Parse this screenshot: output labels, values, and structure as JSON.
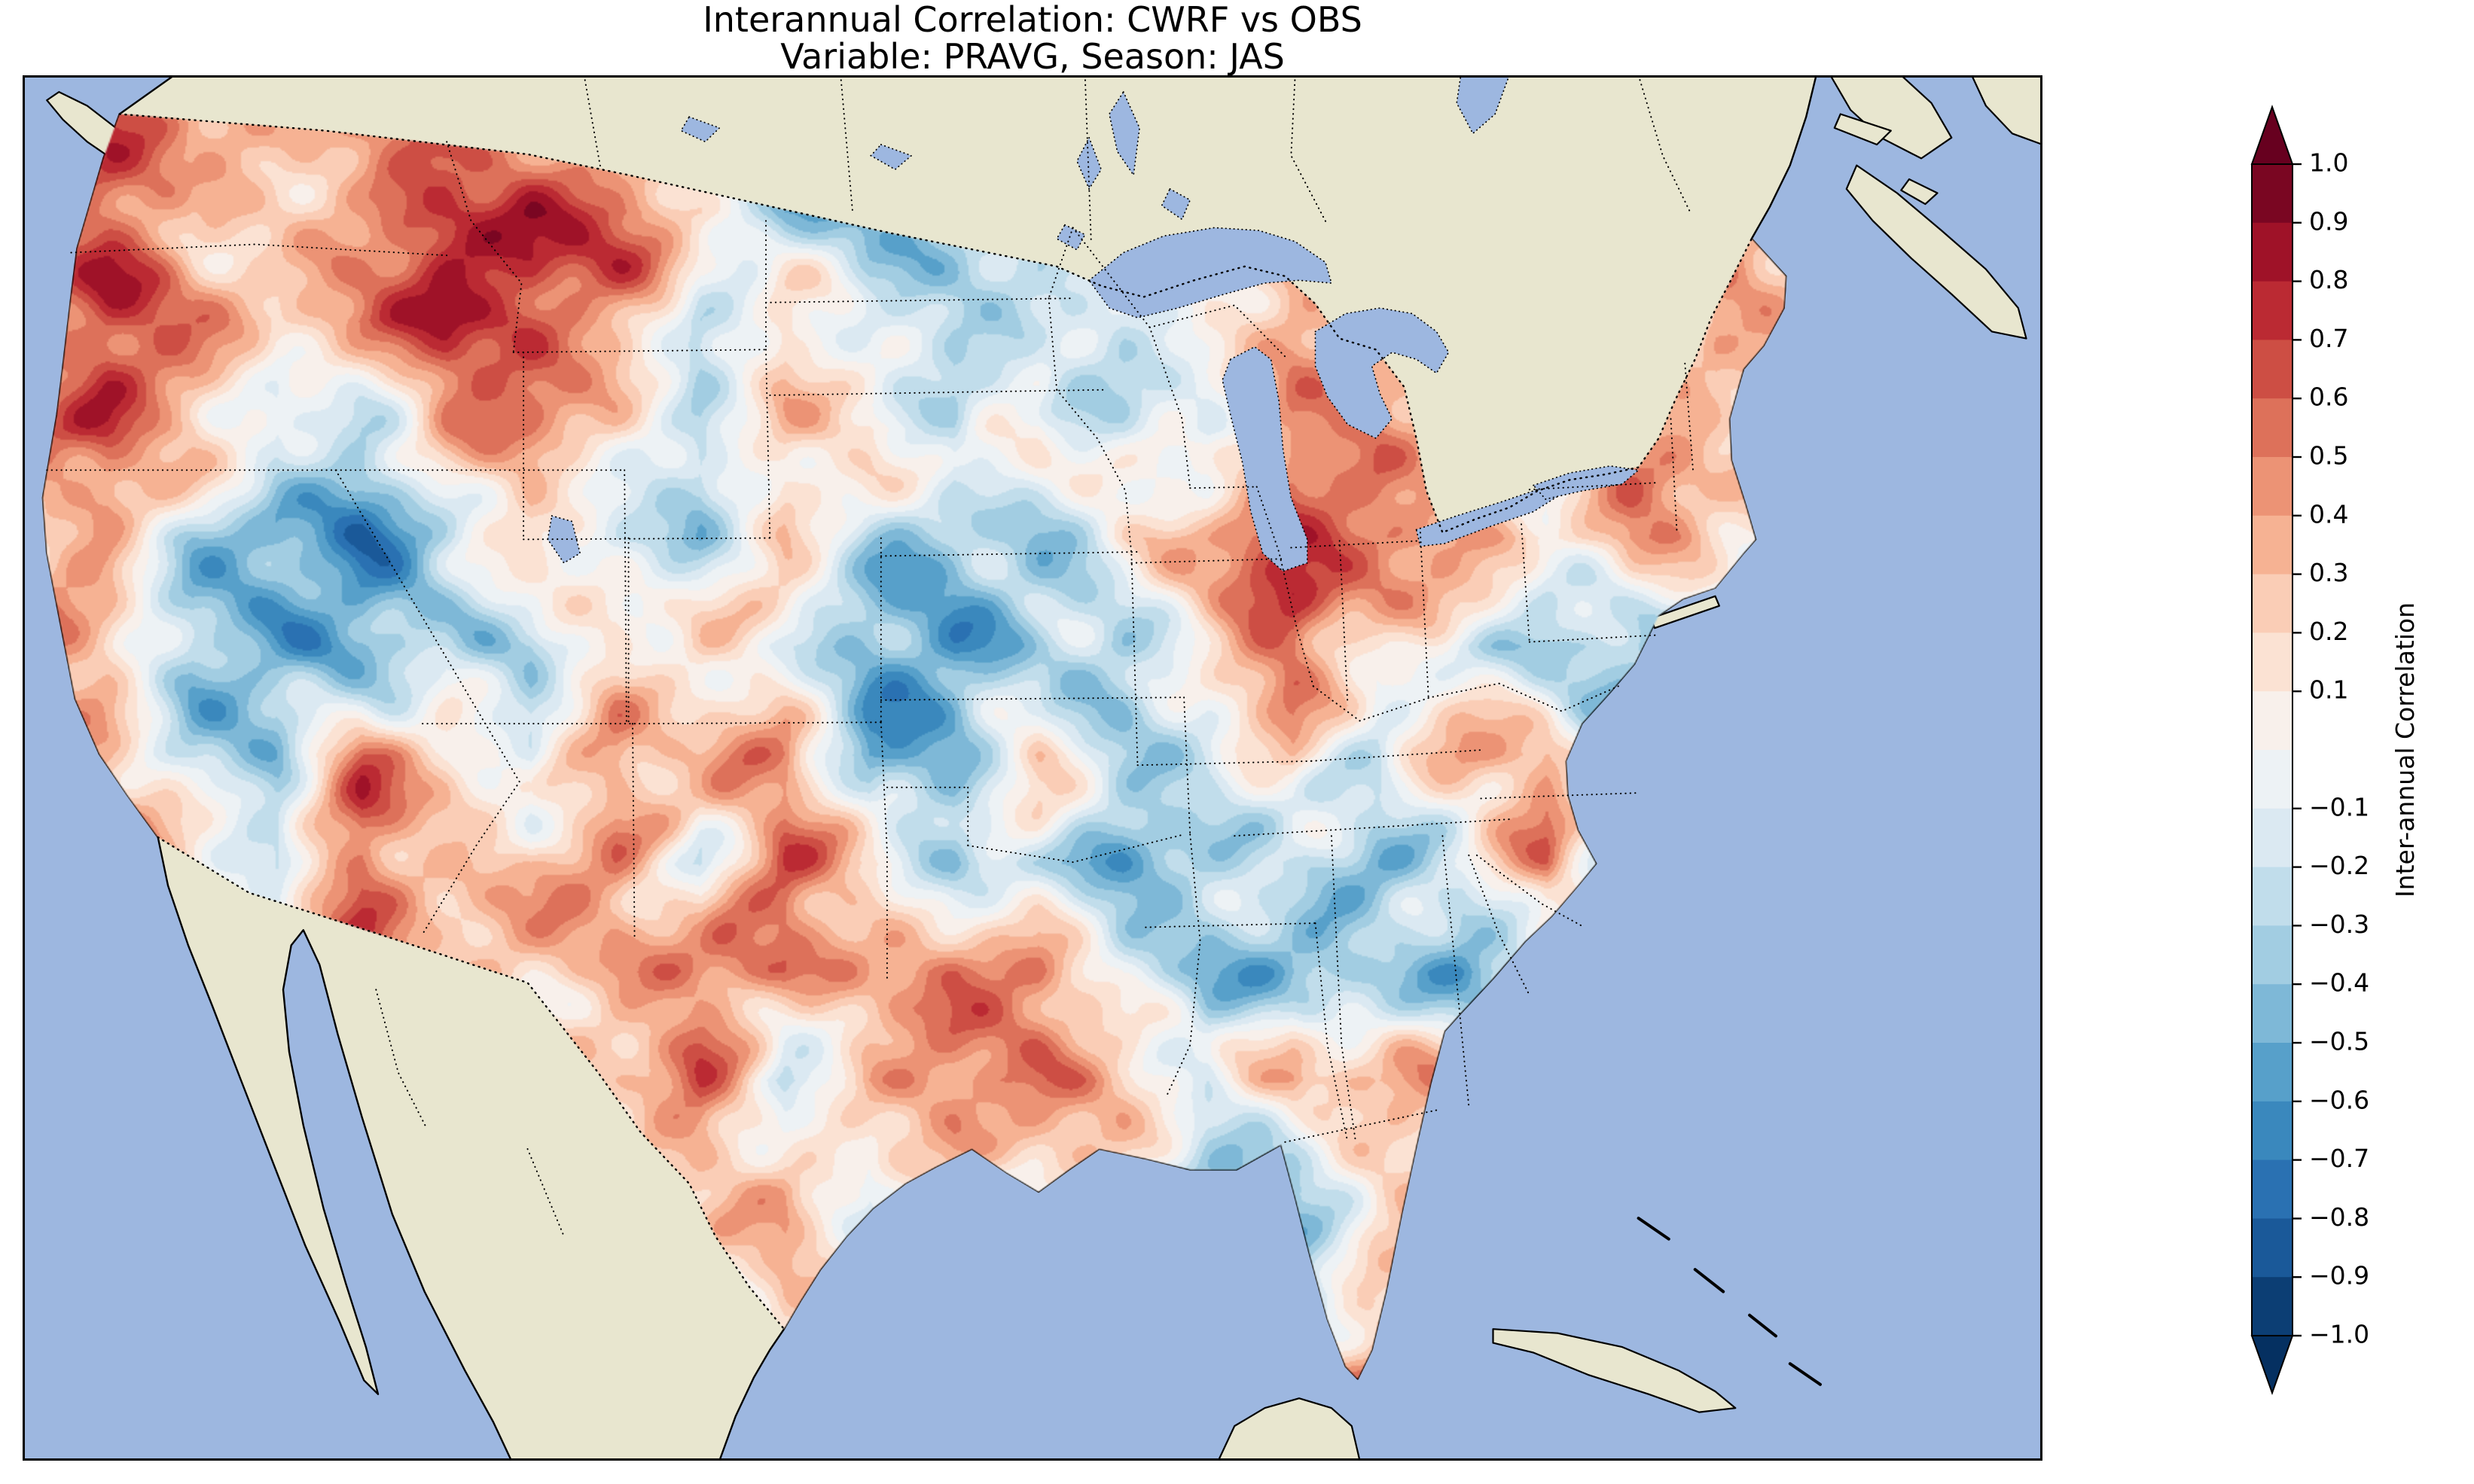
{
  "title": {
    "line1": "Interannual Correlation: CWRF vs OBS",
    "line2": "Variable: PRAVG, Season: JAS"
  },
  "colorbar": {
    "label": "Inter-annual Correlation",
    "tick_labels": [
      "1.0",
      "0.9",
      "0.8",
      "0.7",
      "0.6",
      "0.5",
      "0.4",
      "0.3",
      "0.2",
      "0.1",
      "−0.1",
      "−0.2",
      "−0.3",
      "−0.4",
      "−0.5",
      "−0.6",
      "−0.7",
      "−0.8",
      "−0.9",
      "−1.0"
    ],
    "band_colors_top_to_bottom": [
      "#7a0622",
      "#9f1228",
      "#bb2a33",
      "#cd4e44",
      "#dd715a",
      "#ec9375",
      "#f6b293",
      "#facdb6",
      "#fbe2d3",
      "#f8f0eb",
      "#edf2f5",
      "#dbe9f2",
      "#c1ddeb",
      "#a2cde2",
      "#7eb8d7",
      "#57a0ca",
      "#3a88bd",
      "#2a71b2",
      "#1a5999",
      "#0c3e74"
    ],
    "extend_colors": {
      "over": "#67001f",
      "under": "#053061"
    }
  },
  "map": {
    "ocean_color": "#9db7e0",
    "land_color": "#e8e6cf",
    "lake_color": "#9db7e0",
    "coastline_color": "#000000",
    "border_style": "dotted"
  },
  "chart_data": {
    "type": "heatmap",
    "title": "Interannual Correlation: CWRF vs OBS",
    "subtitle": "Variable: PRAVG, Season: JAS",
    "variable": "PRAVG",
    "season": "JAS",
    "models_compared": [
      "CWRF",
      "OBS"
    ],
    "region": "Continental United States",
    "colorbar_label": "Inter-annual Correlation",
    "value_range": [
      -1.0,
      1.0
    ],
    "contour_interval": 0.1,
    "colorbar_extend": "both",
    "grid_shape_rows_cols": [
      13,
      22
    ],
    "grid_extent_uv": {
      "u": [
        0.0,
        0.88
      ],
      "v": [
        0.02,
        0.96
      ]
    },
    "grid_values_north_to_south": [
      [
        0.6,
        0.7,
        0.3,
        0.2,
        0.4,
        0.5,
        0.4,
        0.2,
        -0.2,
        -0.4,
        -0.3,
        -0.2,
        0.1,
        -0.3,
        0.2,
        0.1,
        -0.1,
        0.2,
        0.1,
        0.3,
        0.2,
        0.1
      ],
      [
        0.8,
        0.6,
        0.2,
        0.3,
        0.5,
        0.8,
        0.9,
        0.6,
        0.3,
        -0.4,
        -0.5,
        -0.3,
        -0.4,
        0.2,
        0.4,
        0.3,
        -0.2,
        0.3,
        -0.2,
        0.2,
        0.4,
        0.3
      ],
      [
        0.5,
        0.7,
        0.4,
        0.2,
        0.6,
        0.9,
        0.8,
        0.4,
        -0.2,
        0.3,
        -0.3,
        -0.4,
        -0.2,
        -0.3,
        0.2,
        0.4,
        0.3,
        0.2,
        -0.3,
        -0.2,
        0.4,
        0.2
      ],
      [
        0.6,
        0.8,
        0.5,
        -0.3,
        -0.2,
        0.3,
        0.4,
        0.2,
        -0.2,
        0.3,
        0.4,
        -0.3,
        0.2,
        -0.2,
        -0.3,
        0.4,
        0.5,
        0.2,
        -0.5,
        0.3,
        0.3,
        0.4
      ],
      [
        0.3,
        0.4,
        -0.2,
        -0.5,
        -0.6,
        -0.3,
        0.2,
        -0.2,
        -0.3,
        0.3,
        -0.2,
        -0.3,
        -0.3,
        0.2,
        0.3,
        0.7,
        0.6,
        0.4,
        0.2,
        0.5,
        0.3,
        0.2
      ],
      [
        0.4,
        0.2,
        -0.3,
        -0.4,
        -0.5,
        -0.2,
        -0.4,
        0.2,
        0.3,
        -0.2,
        -0.4,
        -0.5,
        -0.2,
        -0.3,
        0.2,
        0.6,
        0.3,
        -0.2,
        -0.4,
        -0.3,
        -0.2,
        0.1
      ],
      [
        0.5,
        0.3,
        -0.2,
        -0.3,
        0.5,
        0.3,
        -0.3,
        0.4,
        0.2,
        0.4,
        -0.5,
        -0.3,
        0.2,
        -0.2,
        -0.3,
        0.2,
        -0.3,
        0.3,
        0.4,
        -0.3,
        -0.4,
        0.0
      ],
      [
        0.2,
        0.6,
        0.4,
        -0.2,
        0.6,
        0.4,
        0.2,
        0.3,
        -0.2,
        0.5,
        0.3,
        -0.3,
        -0.2,
        -0.4,
        -0.3,
        -0.4,
        -0.5,
        -0.3,
        0.5,
        -0.2,
        0.3,
        0.0
      ],
      [
        0.0,
        0.0,
        0.2,
        0.3,
        0.4,
        0.2,
        0.3,
        0.5,
        0.4,
        0.6,
        0.3,
        0.5,
        0.4,
        -0.2,
        -0.5,
        -0.3,
        -0.4,
        -0.5,
        -0.2,
        0.2,
        0.0,
        0.0
      ],
      [
        0.0,
        0.0,
        0.0,
        0.0,
        0.2,
        0.3,
        -0.2,
        0.3,
        0.5,
        -0.3,
        0.4,
        0.5,
        0.5,
        0.3,
        -0.2,
        0.5,
        0.2,
        0.4,
        -0.3,
        0.0,
        0.0,
        0.0
      ],
      [
        0.0,
        0.0,
        0.0,
        0.0,
        0.0,
        0.0,
        0.0,
        0.0,
        0.3,
        0.4,
        -0.3,
        0.2,
        0.0,
        0.0,
        -0.2,
        -0.4,
        0.3,
        0.5,
        -0.2,
        0.0,
        0.0,
        0.0
      ],
      [
        0.0,
        0.0,
        0.0,
        0.0,
        0.0,
        0.0,
        0.0,
        0.0,
        0.0,
        0.3,
        0.0,
        0.0,
        0.0,
        0.0,
        0.0,
        -0.4,
        0.2,
        0.4,
        0.0,
        0.0,
        0.0,
        0.0
      ],
      [
        0.0,
        0.0,
        0.0,
        0.0,
        0.0,
        0.0,
        0.0,
        0.0,
        0.0,
        0.0,
        0.0,
        0.0,
        0.0,
        0.0,
        0.0,
        0.4,
        0.6,
        0.3,
        0.0,
        0.0,
        0.0,
        0.0
      ]
    ],
    "grid_values_note": "Approximate 22x13 grid of correlation values estimated from the contoured field over CONUS"
  }
}
